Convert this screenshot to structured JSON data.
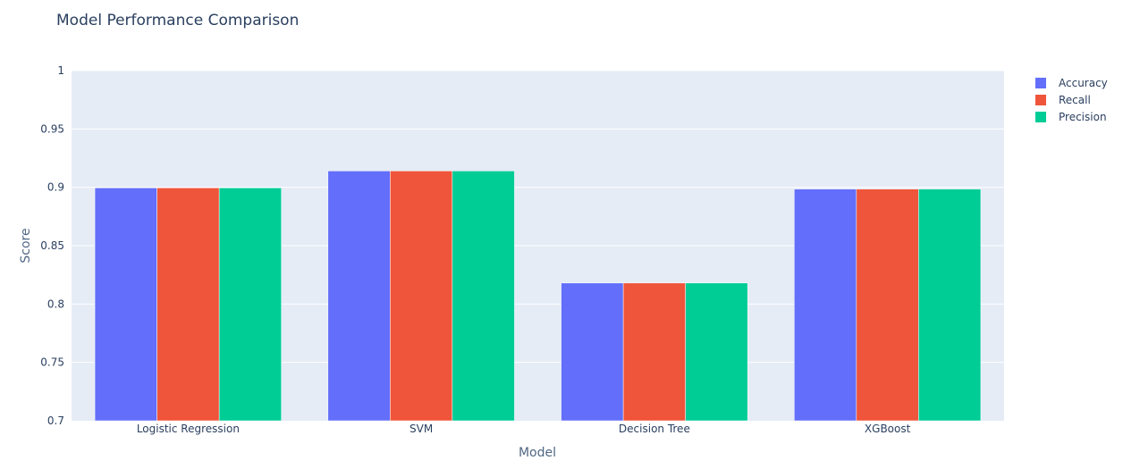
{
  "chart_data": {
    "type": "bar",
    "title": "Model Performance Comparison",
    "xlabel": "Model",
    "ylabel": "Score",
    "ylim": [
      0.7,
      1
    ],
    "yticks": [
      0.7,
      0.75,
      0.8,
      0.85,
      0.9,
      0.95,
      1
    ],
    "ytick_labels": [
      "0.7",
      "0.75",
      "0.8",
      "0.85",
      "0.9",
      "0.95",
      "1"
    ],
    "categories": [
      "Logistic Regression",
      "SVM",
      "Decision Tree",
      "XGBoost"
    ],
    "series": [
      {
        "name": "Accuracy",
        "color": "#636efa",
        "values": [
          0.8995,
          0.914,
          0.818,
          0.8985
        ]
      },
      {
        "name": "Recall",
        "color": "#ef553b",
        "values": [
          0.8995,
          0.914,
          0.818,
          0.8985
        ]
      },
      {
        "name": "Precision",
        "color": "#00cc96",
        "values": [
          0.8995,
          0.914,
          0.818,
          0.8985
        ]
      }
    ],
    "grid": true,
    "legend_position": "top-right",
    "plot_background": "#e5ecf6"
  }
}
